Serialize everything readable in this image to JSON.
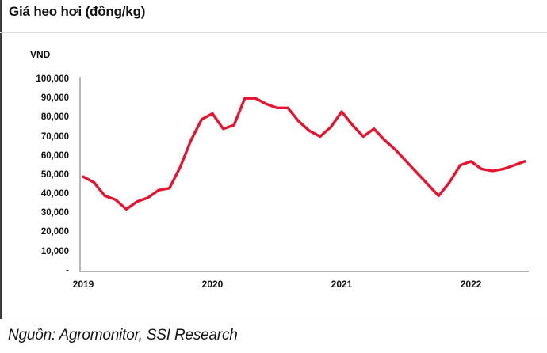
{
  "header": {
    "title": "Giá heo hơi (đồng/kg)"
  },
  "footer": {
    "source": "Nguồn: Agromonitor, SSI Research"
  },
  "colors": {
    "line": "#e8142f",
    "axis": "#a6a6a6",
    "divider": "#e0e0e0",
    "text": "#111111"
  },
  "chart_data": {
    "type": "line",
    "title": "Giá heo hơi (đồng/kg)",
    "ylabel": "VND",
    "xlabel": "",
    "unit_label": "VND",
    "grid": false,
    "legend": "none",
    "ylim": [
      0,
      100000
    ],
    "y_ticks": [
      {
        "value": 100000,
        "label": "100,000"
      },
      {
        "value": 90000,
        "label": "90,000"
      },
      {
        "value": 80000,
        "label": "80,000"
      },
      {
        "value": 70000,
        "label": "70,000"
      },
      {
        "value": 60000,
        "label": "60,000"
      },
      {
        "value": 50000,
        "label": "50,000"
      },
      {
        "value": 40000,
        "label": "40,000"
      },
      {
        "value": 30000,
        "label": "30,000"
      },
      {
        "value": 20000,
        "label": "20,000"
      },
      {
        "value": 10000,
        "label": "10,000"
      },
      {
        "value": 0,
        "label": "-"
      }
    ],
    "x_tick_labels": [
      "2019",
      "2020",
      "2021",
      "2022"
    ],
    "x": [
      "2019-01",
      "2019-02",
      "2019-03",
      "2019-04",
      "2019-05",
      "2019-06",
      "2019-07",
      "2019-08",
      "2019-09",
      "2019-10",
      "2019-11",
      "2019-12",
      "2020-01",
      "2020-02",
      "2020-03",
      "2020-04",
      "2020-05",
      "2020-06",
      "2020-07",
      "2020-08",
      "2020-09",
      "2020-10",
      "2020-11",
      "2020-12",
      "2021-01",
      "2021-02",
      "2021-03",
      "2021-04",
      "2021-05",
      "2021-06",
      "2021-07",
      "2021-08",
      "2021-09",
      "2021-10",
      "2021-11",
      "2021-12",
      "2022-01",
      "2022-02",
      "2022-03",
      "2022-04",
      "2022-05",
      "2022-06"
    ],
    "series": [
      {
        "name": "Giá heo hơi (đồng/kg)",
        "color": "#e8142f",
        "values": [
          49000,
          46000,
          39000,
          37000,
          32000,
          36000,
          38000,
          42000,
          43000,
          54000,
          68000,
          79000,
          82000,
          74000,
          76000,
          90000,
          90000,
          87000,
          85000,
          85000,
          78000,
          73000,
          70000,
          75000,
          83000,
          76000,
          70000,
          74000,
          68000,
          63000,
          57000,
          51000,
          45000,
          39000,
          46000,
          55000,
          57000,
          53000,
          52000,
          53000,
          55000,
          57000
        ]
      }
    ]
  }
}
